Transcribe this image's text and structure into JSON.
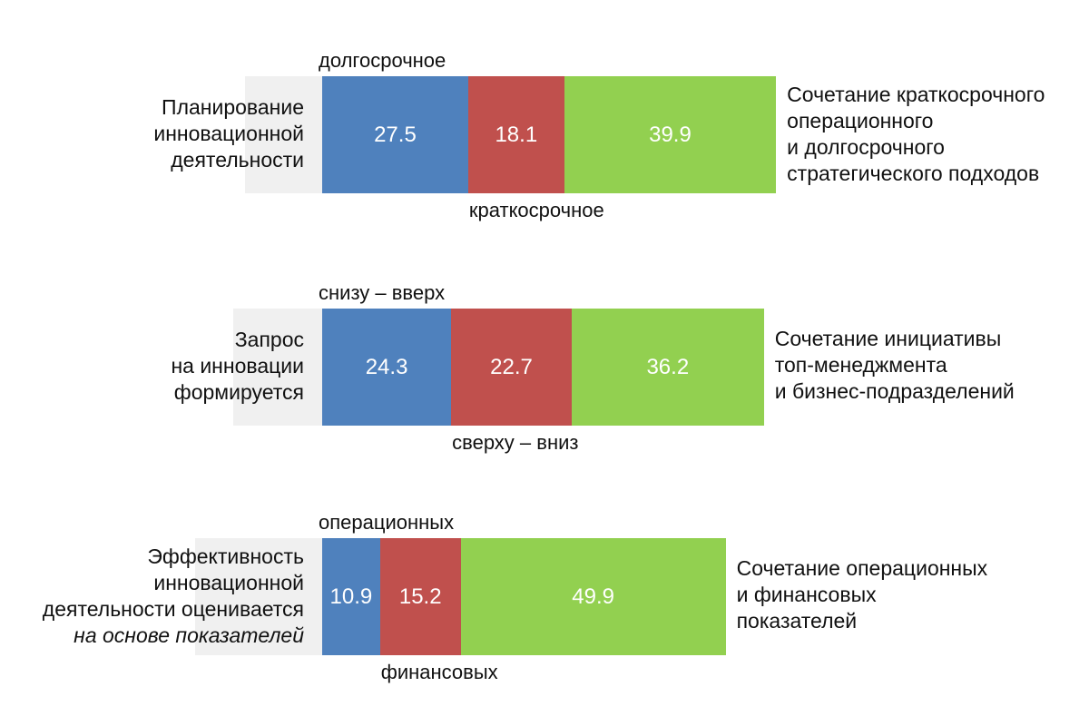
{
  "chart_data": {
    "type": "bar",
    "orientation": "horizontal",
    "stacked": true,
    "xlim": [
      0,
      100
    ],
    "colors": {
      "first": "#4f81bd",
      "second": "#c0504d",
      "combined": "#92d050",
      "remainder": "#f0f0f0"
    },
    "rows": [
      {
        "label_lines": [
          "Планирование",
          "инновационной",
          "деятельности"
        ],
        "label_italic": "",
        "top_caption": "долгосрочное",
        "bottom_caption": "краткосрочное",
        "values": [
          27.5,
          18.1,
          39.9
        ],
        "value_labels": [
          "27.5",
          "18.1",
          "39.9"
        ],
        "right_lines": [
          "Сочетание краткосрочного",
          "операционного",
          "и долгосрочного",
          "стратегического подходов"
        ]
      },
      {
        "label_lines": [
          "Запрос",
          "на инновации",
          "формируется"
        ],
        "label_italic": "",
        "top_caption": "снизу – вверх",
        "bottom_caption": "сверху – вниз",
        "values": [
          24.3,
          22.7,
          36.2
        ],
        "value_labels": [
          "24.3",
          "22.7",
          "36.2"
        ],
        "right_lines": [
          "Сочетание инициативы",
          "топ-менеджмента",
          "и бизнес-подразделений"
        ]
      },
      {
        "label_lines": [
          "Эффективность",
          "инновационной",
          "деятельности оценивается"
        ],
        "label_italic": "на основе показателей",
        "top_caption": "операционных",
        "bottom_caption": "финансовых",
        "values": [
          10.9,
          15.2,
          49.9
        ],
        "value_labels": [
          "10.9",
          "15.2",
          "49.9"
        ],
        "right_lines": [
          "Сочетание операционных",
          "и финансовых",
          "показателей"
        ]
      }
    ]
  }
}
